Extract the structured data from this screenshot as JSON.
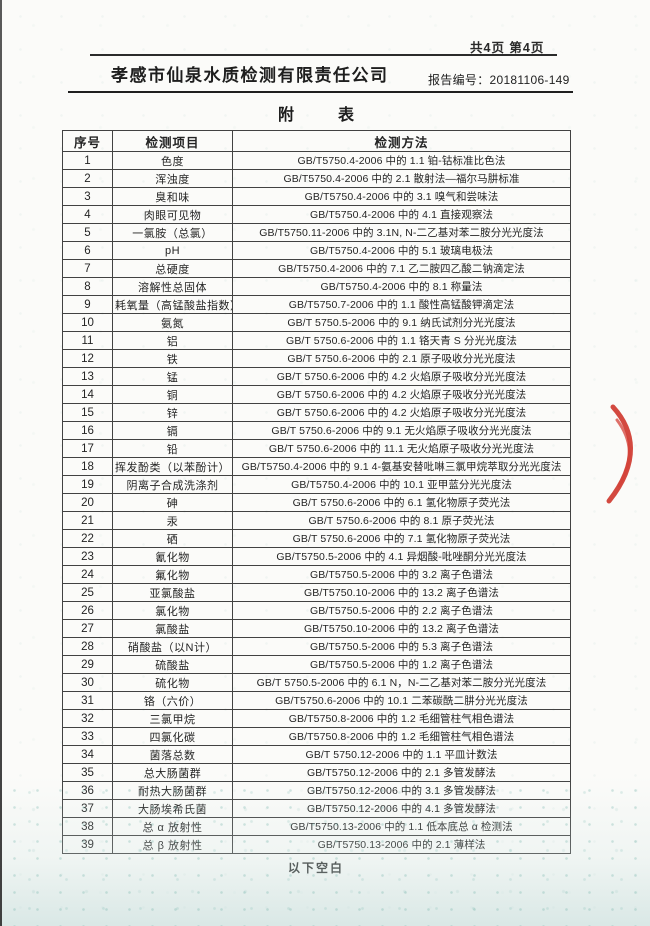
{
  "page": {
    "page_info": "共4页 第4页",
    "company": "孝感市仙泉水质检测有限责任公司",
    "report_label": "报告编号：",
    "report_no": "20181106-149",
    "title_char1": "附",
    "title_char2": "表",
    "footer_note": "以下空白",
    "stamp_color": "#cf3a30"
  },
  "table": {
    "headers": [
      "序号",
      "检测项目",
      "检测方法"
    ],
    "rows": [
      [
        "1",
        "色度",
        "GB/T5750.4-2006 中的 1.1 铂-钴标准比色法"
      ],
      [
        "2",
        "浑浊度",
        "GB/T5750.4-2006 中的 2.1 散射法—福尔马肼标准"
      ],
      [
        "3",
        "臭和味",
        "GB/T5750.4-2006 中的 3.1 嗅气和尝味法"
      ],
      [
        "4",
        "肉眼可见物",
        "GB/T5750.4-2006 中的 4.1 直接观察法"
      ],
      [
        "5",
        "一氯胺（总氯）",
        "GB/T5750.11-2006 中的 3.1N, N-二乙基对苯二胺分光光度法"
      ],
      [
        "6",
        "pH",
        "GB/T5750.4-2006 中的 5.1 玻璃电极法"
      ],
      [
        "7",
        "总硬度",
        "GB/T5750.4-2006 中的 7.1 乙二胺四乙酸二钠滴定法"
      ],
      [
        "8",
        "溶解性总固体",
        "GB/T5750.4-2006 中的 8.1 称量法"
      ],
      [
        "9",
        "耗氧量（高锰酸盐指数）",
        "GB/T5750.7-2006 中的 1.1 酸性高锰酸钾滴定法"
      ],
      [
        "10",
        "氨氮",
        "GB/T 5750.5-2006 中的 9.1 纳氏试剂分光光度法"
      ],
      [
        "11",
        "铝",
        "GB/T 5750.6-2006 中的 1.1 铬天青 S 分光光度法"
      ],
      [
        "12",
        "铁",
        "GB/T 5750.6-2006 中的 2.1 原子吸收分光光度法"
      ],
      [
        "13",
        "锰",
        "GB/T 5750.6-2006 中的 4.2 火焰原子吸收分光光度法"
      ],
      [
        "14",
        "铜",
        "GB/T 5750.6-2006 中的 4.2 火焰原子吸收分光光度法"
      ],
      [
        "15",
        "锌",
        "GB/T 5750.6-2006 中的 4.2 火焰原子吸收分光光度法"
      ],
      [
        "16",
        "镉",
        "GB/T 5750.6-2006 中的 9.1 无火焰原子吸收分光光度法"
      ],
      [
        "17",
        "铅",
        "GB/T 5750.6-2006 中的 11.1 无火焰原子吸收分光光度法"
      ],
      [
        "18",
        "挥发酚类（以苯酚计）",
        "GB/T5750.4-2006 中的 9.1  4-氨基安替吡啉三氯甲烷萃取分光光度法"
      ],
      [
        "19",
        "阴离子合成洗涤剂",
        "GB/T5750.4-2006 中的 10.1 亚甲蓝分光光度法"
      ],
      [
        "20",
        "砷",
        "GB/T 5750.6-2006 中的 6.1 氢化物原子荧光法"
      ],
      [
        "21",
        "汞",
        "GB/T 5750.6-2006 中的 8.1 原子荧光法"
      ],
      [
        "22",
        "硒",
        "GB/T 5750.6-2006 中的 7.1 氢化物原子荧光法"
      ],
      [
        "23",
        "氰化物",
        "GB/T5750.5-2006 中的 4.1 异烟酸-吡唑酮分光光度法"
      ],
      [
        "24",
        "氟化物",
        "GB/T5750.5-2006 中的 3.2 离子色谱法"
      ],
      [
        "25",
        "亚氯酸盐",
        "GB/T5750.10-2006 中的 13.2 离子色谱法"
      ],
      [
        "26",
        "氯化物",
        "GB/T5750.5-2006 中的 2.2 离子色谱法"
      ],
      [
        "27",
        "氯酸盐",
        "GB/T5750.10-2006 中的 13.2 离子色谱法"
      ],
      [
        "28",
        "硝酸盐（以N计）",
        "GB/T5750.5-2006 中的 5.3 离子色谱法"
      ],
      [
        "29",
        "硫酸盐",
        "GB/T5750.5-2006 中的 1.2 离子色谱法"
      ],
      [
        "30",
        "硫化物",
        "GB/T 5750.5-2006 中的 6.1  N，N-二乙基对苯二胺分光光度法"
      ],
      [
        "31",
        "铬（六价）",
        "GB/T5750.6-2006 中的 10.1 二苯碳酰二肼分光光度法"
      ],
      [
        "32",
        "三氯甲烷",
        "GB/T5750.8-2006 中的 1.2 毛细管柱气相色谱法"
      ],
      [
        "33",
        "四氯化碳",
        "GB/T5750.8-2006 中的 1.2 毛细管柱气相色谱法"
      ],
      [
        "34",
        "菌落总数",
        "GB/T 5750.12-2006 中的 1.1 平皿计数法"
      ],
      [
        "35",
        "总大肠菌群",
        "GB/T5750.12-2006 中的 2.1 多管发酵法"
      ],
      [
        "36",
        "耐热大肠菌群",
        "GB/T5750.12-2006 中的 3.1 多管发酵法"
      ],
      [
        "37",
        "大肠埃希氏菌",
        "GB/T5750.12-2006 中的 4.1 多管发酵法"
      ],
      [
        "38",
        "总 α 放射性",
        "GB/T5750.13-2006 中的 1.1 低本底总 α 检测法"
      ],
      [
        "39",
        "总 β 放射性",
        "GB/T5750.13-2006 中的 2.1 薄样法"
      ]
    ]
  }
}
